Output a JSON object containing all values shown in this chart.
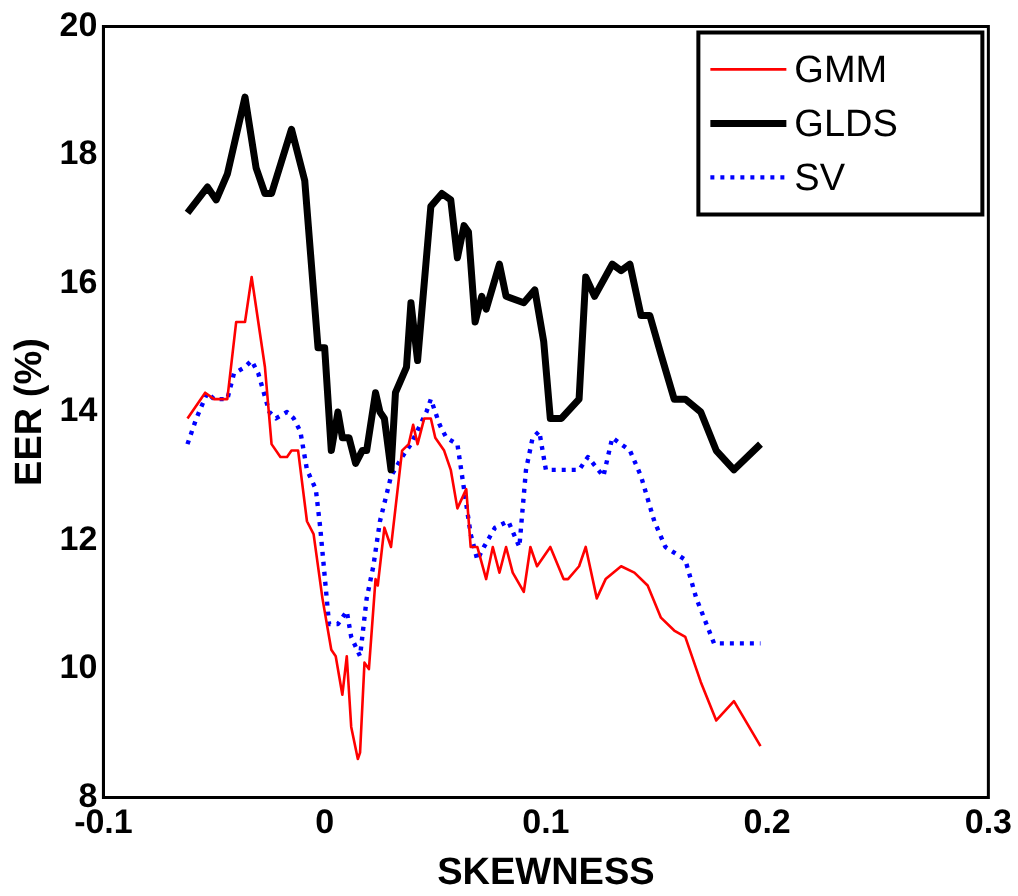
{
  "chart_data": {
    "type": "line",
    "xlabel": "SKEWNESS",
    "ylabel": "EER (%)",
    "xlim": [
      -0.1,
      0.3
    ],
    "xticks": [
      -0.1,
      0,
      0.1,
      0.2,
      0.3
    ],
    "ylim": [
      8,
      20
    ],
    "yticks": [
      8,
      10,
      12,
      14,
      16,
      18,
      20
    ],
    "grid": false,
    "legend": "top right",
    "marker": "none",
    "series": [
      {
        "name": "GMM",
        "color": "#ff0000",
        "line_style": "solid",
        "x": [
          -0.062,
          -0.054,
          -0.05,
          -0.044,
          -0.04,
          -0.036,
          -0.033,
          -0.027,
          -0.024,
          -0.02,
          -0.017,
          -0.015,
          -0.012,
          -0.008,
          -0.005,
          -0.001,
          0.003,
          0.005,
          0.008,
          0.01,
          0.012,
          0.015,
          0.016,
          0.018,
          0.02,
          0.023,
          0.024,
          0.027,
          0.03,
          0.035,
          0.038,
          0.04,
          0.042,
          0.045,
          0.048,
          0.05,
          0.054,
          0.057,
          0.06,
          0.064,
          0.066,
          0.069,
          0.073,
          0.076,
          0.079,
          0.082,
          0.085,
          0.09,
          0.093,
          0.096,
          0.102,
          0.108,
          0.11,
          0.115,
          0.118,
          0.123,
          0.127,
          0.134,
          0.14,
          0.146,
          0.152,
          0.158,
          0.163,
          0.17,
          0.177,
          0.185,
          0.197
        ],
        "values": [
          13.9,
          14.3,
          14.2,
          14.2,
          15.4,
          15.4,
          16.1,
          14.7,
          13.5,
          13.3,
          13.3,
          13.4,
          13.4,
          12.3,
          12.1,
          11.1,
          10.3,
          10.2,
          9.6,
          10.2,
          9.1,
          8.6,
          8.7,
          10.1,
          10.0,
          11.4,
          11.3,
          12.2,
          11.9,
          13.4,
          13.5,
          13.8,
          13.5,
          13.9,
          13.9,
          13.6,
          13.4,
          13.1,
          12.5,
          12.8,
          11.9,
          11.9,
          11.4,
          11.9,
          11.5,
          11.9,
          11.5,
          11.2,
          11.9,
          11.6,
          11.9,
          11.4,
          11.4,
          11.6,
          11.9,
          11.1,
          11.4,
          11.6,
          11.5,
          11.3,
          10.8,
          10.6,
          10.5,
          9.8,
          9.2,
          9.5,
          8.8
        ]
      },
      {
        "name": "GLDS",
        "color": "#000000",
        "line_style": "solid",
        "x": [
          -0.062,
          -0.053,
          -0.049,
          -0.044,
          -0.036,
          -0.031,
          -0.027,
          -0.024,
          -0.015,
          -0.009,
          -0.003,
          0.0,
          0.003,
          0.006,
          0.008,
          0.011,
          0.014,
          0.017,
          0.019,
          0.023,
          0.025,
          0.027,
          0.03,
          0.032,
          0.037,
          0.039,
          0.042,
          0.048,
          0.053,
          0.057,
          0.06,
          0.063,
          0.065,
          0.068,
          0.071,
          0.073,
          0.079,
          0.082,
          0.09,
          0.095,
          0.099,
          0.102,
          0.107,
          0.115,
          0.118,
          0.122,
          0.13,
          0.134,
          0.138,
          0.143,
          0.147,
          0.152,
          0.158,
          0.163,
          0.17,
          0.177,
          0.185,
          0.197
        ],
        "values": [
          17.1,
          17.5,
          17.3,
          17.7,
          18.9,
          17.8,
          17.4,
          17.4,
          18.4,
          17.6,
          15.0,
          15.0,
          13.4,
          14.0,
          13.6,
          13.6,
          13.2,
          13.4,
          13.4,
          14.3,
          14.0,
          13.9,
          13.1,
          14.3,
          14.7,
          15.7,
          14.8,
          17.2,
          17.4,
          17.3,
          16.4,
          16.9,
          16.8,
          15.4,
          15.8,
          15.6,
          16.3,
          15.8,
          15.7,
          15.9,
          15.1,
          13.9,
          13.9,
          14.2,
          16.1,
          15.8,
          16.3,
          16.2,
          16.3,
          15.5,
          15.5,
          14.9,
          14.2,
          14.2,
          14.0,
          13.4,
          13.1,
          13.5
        ]
      },
      {
        "name": "SV",
        "color": "#0000ff",
        "line_style": "dotted",
        "x": [
          -0.062,
          -0.058,
          -0.053,
          -0.05,
          -0.044,
          -0.041,
          -0.036,
          -0.033,
          -0.03,
          -0.025,
          -0.022,
          -0.017,
          -0.014,
          -0.011,
          -0.008,
          -0.004,
          -0.002,
          0.002,
          0.006,
          0.01,
          0.012,
          0.016,
          0.019,
          0.022,
          0.025,
          0.03,
          0.035,
          0.039,
          0.046,
          0.048,
          0.052,
          0.055,
          0.06,
          0.063,
          0.066,
          0.069,
          0.072,
          0.077,
          0.083,
          0.088,
          0.091,
          0.094,
          0.097,
          0.1,
          0.108,
          0.115,
          0.119,
          0.126,
          0.13,
          0.138,
          0.143,
          0.149,
          0.154,
          0.163,
          0.168,
          0.176,
          0.185,
          0.197
        ],
        "values": [
          13.5,
          13.9,
          14.3,
          14.2,
          14.2,
          14.6,
          14.7,
          14.8,
          14.6,
          14.0,
          13.9,
          14.0,
          13.9,
          13.7,
          13.1,
          12.8,
          12.2,
          10.7,
          10.7,
          10.9,
          10.5,
          10.2,
          11.1,
          11.6,
          12.3,
          13.0,
          13.3,
          13.5,
          14.0,
          14.2,
          13.8,
          13.6,
          13.5,
          12.8,
          12.1,
          11.7,
          11.9,
          12.2,
          12.3,
          11.9,
          13.1,
          13.6,
          13.7,
          13.1,
          13.1,
          13.1,
          13.3,
          13.0,
          13.6,
          13.4,
          13.0,
          12.3,
          11.9,
          11.7,
          11.1,
          10.4,
          10.4,
          10.4
        ]
      }
    ]
  }
}
